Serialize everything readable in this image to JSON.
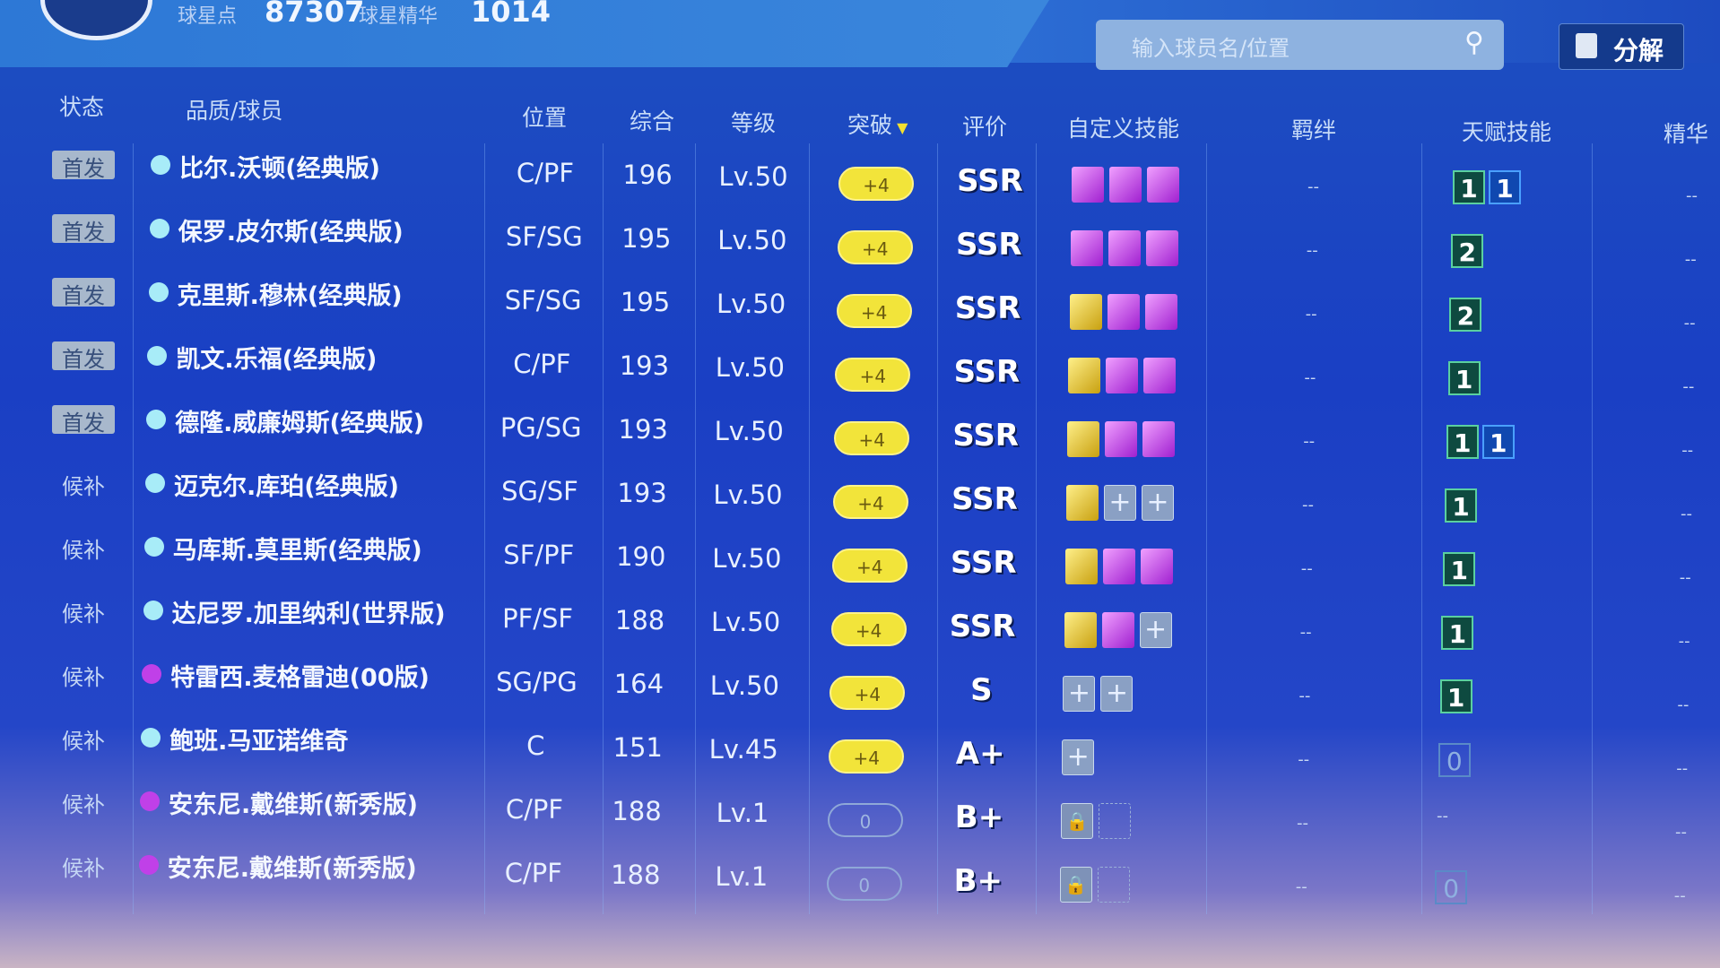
{
  "topbar": {
    "points_label": "球星点",
    "points_value": "87307",
    "essence_label": "球星精华",
    "essence_value": "1014",
    "search_placeholder": "输入球员名/位置",
    "search_icon": "search-icon",
    "decompose_label": "分解"
  },
  "headers": {
    "status": "状态",
    "player": "品质/球员",
    "position": "位置",
    "overall": "综合",
    "level": "等级",
    "breakthrough": "突破",
    "sort_icon": "triangle-down",
    "rating": "评价",
    "custom_skills": "自定义技能",
    "bond": "羁绊",
    "talent": "天赋技能",
    "essence": "精华"
  },
  "colors": {
    "cyan_dot": "#a8ecf8",
    "purple_dot": "#c040e8",
    "break_badge": "#f2e43a"
  },
  "rows": [
    {
      "status": "首发",
      "starter": true,
      "dot": "cyan",
      "name": "比尔.沃顿(经典版)",
      "pos": "C/PF",
      "ovr": "196",
      "lvl": "Lv.50",
      "brk": "+4",
      "rate": "SSR",
      "skills": [
        "purple",
        "purple",
        "purple"
      ],
      "bond": "--",
      "talent": [
        [
          "1",
          "green"
        ],
        [
          "1",
          "blue"
        ]
      ],
      "ess": "--"
    },
    {
      "status": "首发",
      "starter": true,
      "dot": "cyan",
      "name": "保罗.皮尔斯(经典版)",
      "pos": "SF/SG",
      "ovr": "195",
      "lvl": "Lv.50",
      "brk": "+4",
      "rate": "SSR",
      "skills": [
        "purple",
        "purple",
        "purple"
      ],
      "bond": "--",
      "talent": [
        [
          "2",
          "green"
        ]
      ],
      "ess": "--"
    },
    {
      "status": "首发",
      "starter": true,
      "dot": "cyan",
      "name": "克里斯.穆林(经典版)",
      "pos": "SF/SG",
      "ovr": "195",
      "lvl": "Lv.50",
      "brk": "+4",
      "rate": "SSR",
      "skills": [
        "gold",
        "purple",
        "purple"
      ],
      "bond": "--",
      "talent": [
        [
          "2",
          "green"
        ]
      ],
      "ess": "--"
    },
    {
      "status": "首发",
      "starter": true,
      "dot": "cyan",
      "name": "凯文.乐福(经典版)",
      "pos": "C/PF",
      "ovr": "193",
      "lvl": "Lv.50",
      "brk": "+4",
      "rate": "SSR",
      "skills": [
        "gold",
        "purple",
        "purple"
      ],
      "bond": "--",
      "talent": [
        [
          "1",
          "green"
        ]
      ],
      "ess": "--"
    },
    {
      "status": "首发",
      "starter": true,
      "dot": "cyan",
      "name": "德隆.威廉姆斯(经典版)",
      "pos": "PG/SG",
      "ovr": "193",
      "lvl": "Lv.50",
      "brk": "+4",
      "rate": "SSR",
      "skills": [
        "gold",
        "purple",
        "purple"
      ],
      "bond": "--",
      "talent": [
        [
          "1",
          "green"
        ],
        [
          "1",
          "blue"
        ]
      ],
      "ess": "--"
    },
    {
      "status": "候补",
      "starter": false,
      "dot": "cyan",
      "name": "迈克尔.库珀(经典版)",
      "pos": "SG/SF",
      "ovr": "193",
      "lvl": "Lv.50",
      "brk": "+4",
      "rate": "SSR",
      "skills": [
        "gold",
        "empty",
        "empty"
      ],
      "bond": "--",
      "talent": [
        [
          "1",
          "green"
        ]
      ],
      "ess": "--"
    },
    {
      "status": "候补",
      "starter": false,
      "dot": "cyan",
      "name": "马库斯.莫里斯(经典版)",
      "pos": "SF/PF",
      "ovr": "190",
      "lvl": "Lv.50",
      "brk": "+4",
      "rate": "SSR",
      "skills": [
        "gold",
        "purple",
        "purple"
      ],
      "bond": "--",
      "talent": [
        [
          "1",
          "green"
        ]
      ],
      "ess": "--"
    },
    {
      "status": "候补",
      "starter": false,
      "dot": "cyan",
      "name": "达尼罗.加里纳利(世界版)",
      "pos": "PF/SF",
      "ovr": "188",
      "lvl": "Lv.50",
      "brk": "+4",
      "rate": "SSR",
      "skills": [
        "gold",
        "purple",
        "empty"
      ],
      "bond": "--",
      "talent": [
        [
          "1",
          "green"
        ]
      ],
      "ess": "--"
    },
    {
      "status": "候补",
      "starter": false,
      "dot": "purple",
      "name": "特雷西.麦格雷迪(00版)",
      "pos": "SG/PG",
      "ovr": "164",
      "lvl": "Lv.50",
      "brk": "+4",
      "rate": "S",
      "skills": [
        "empty",
        "empty"
      ],
      "bond": "--",
      "talent": [
        [
          "1",
          "green"
        ]
      ],
      "ess": "--"
    },
    {
      "status": "候补",
      "starter": false,
      "dot": "cyan",
      "name": "鲍班.马亚诺维奇",
      "pos": "C",
      "ovr": "151",
      "lvl": "Lv.45",
      "brk": "+4",
      "rate": "A+",
      "skills": [
        "empty"
      ],
      "bond": "--",
      "talent": [
        [
          "0",
          "zero"
        ]
      ],
      "ess": "--"
    },
    {
      "status": "候补",
      "starter": false,
      "dot": "purple",
      "name": "安东尼.戴维斯(新秀版)",
      "pos": "C/PF",
      "ovr": "188",
      "lvl": "Lv.1",
      "brk": "0",
      "rate": "B+",
      "skills": [
        "lock",
        "blank"
      ],
      "bond": "--",
      "talent": [],
      "talent_text": "--",
      "ess": "--"
    },
    {
      "status": "候补",
      "starter": false,
      "dot": "purple",
      "name": "安东尼.戴维斯(新秀版)",
      "pos": "C/PF",
      "ovr": "188",
      "lvl": "Lv.1",
      "brk": "0",
      "rate": "B+",
      "skills": [
        "lock",
        "blank"
      ],
      "bond": "--",
      "talent": [
        [
          "0",
          "zero"
        ]
      ],
      "ess": "--"
    }
  ]
}
